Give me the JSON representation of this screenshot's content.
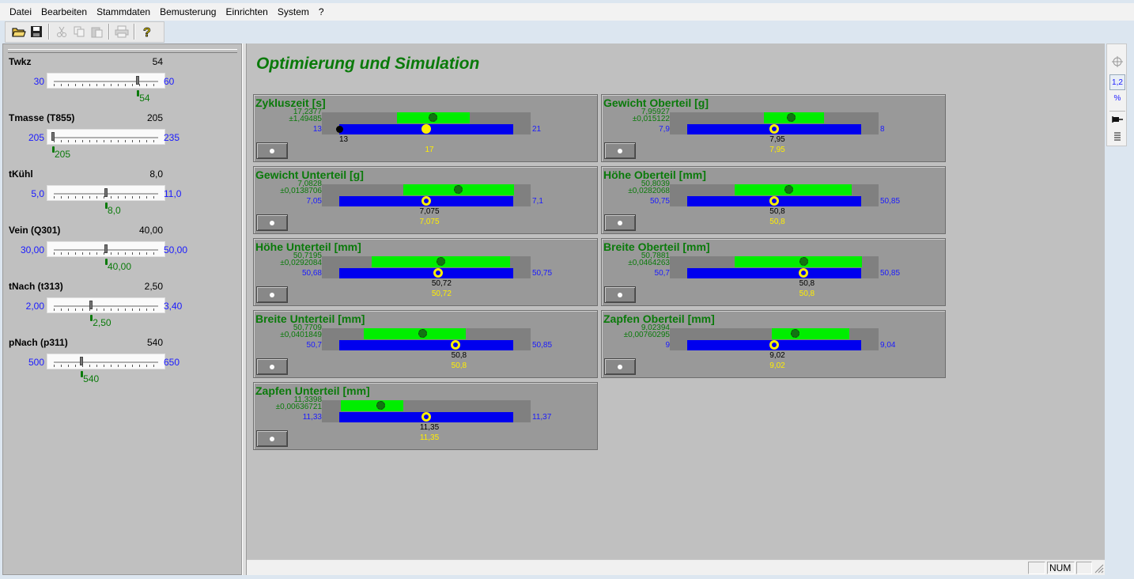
{
  "menu": [
    "Datei",
    "Bearbeiten",
    "Stammdaten",
    "Bemusterung",
    "Einrichten",
    "System",
    "?"
  ],
  "toolbar": {
    "buttons": [
      {
        "icon": "open-folder-icon",
        "enabled": true
      },
      {
        "icon": "save-disk-icon",
        "enabled": true
      },
      {
        "icon": "cut-icon",
        "enabled": false
      },
      {
        "icon": "copy-icon",
        "enabled": false
      },
      {
        "icon": "paste-icon",
        "enabled": false
      },
      {
        "icon": "print-icon",
        "enabled": false
      },
      {
        "icon": "help-icon",
        "enabled": true
      }
    ]
  },
  "params": [
    {
      "name": "Twkz",
      "value": "54",
      "min": "30",
      "max": "60",
      "optimal": "54",
      "fraction": 0.8
    },
    {
      "name": "Tmasse  (T855)",
      "value": "205",
      "min": "205",
      "max": "235",
      "optimal": "205",
      "fraction": 0.0
    },
    {
      "name": "tKühl",
      "value": "8,0",
      "min": "5,0",
      "max": "11,0",
      "optimal": "8,0",
      "fraction": 0.5
    },
    {
      "name": "Vein  (Q301)",
      "value": "40,00",
      "min": "30,00",
      "max": "50,00",
      "optimal": "40,00",
      "fraction": 0.5
    },
    {
      "name": "tNach  (t313)",
      "value": "2,50",
      "min": "2,00",
      "max": "3,40",
      "optimal": "2,50",
      "fraction": 0.36
    },
    {
      "name": "pNach  (p311)",
      "value": "540",
      "min": "500",
      "max": "650",
      "optimal": "540",
      "fraction": 0.27
    }
  ],
  "main": {
    "title": "Optimierung und Simulation"
  },
  "cards": [
    {
      "title": "Zykluszeit [s]",
      "mean": "17,2377",
      "sd": "±1,49485",
      "min": "13",
      "max": "21",
      "current": "",
      "optimum": "17",
      "min_marker": "13",
      "green_from": 0.36,
      "green_to": 0.71,
      "green_dot": 0.53,
      "marker": 0.5,
      "filled": true
    },
    {
      "title": "Gewicht Oberteil [g]",
      "mean": "7,95927",
      "sd": "±0,015122",
      "min": "7,9",
      "max": "8",
      "current": "7,95",
      "optimum": "7,95",
      "min_marker": "",
      "green_from": 0.45,
      "green_to": 0.74,
      "green_dot": 0.58,
      "marker": 0.5,
      "filled": false
    },
    {
      "title": "Gewicht Unterteil [g]",
      "mean": "7,0828",
      "sd": "±0,0138706",
      "min": "7,05",
      "max": "7,1",
      "current": "7,075",
      "optimum": "7,075",
      "min_marker": "",
      "green_from": 0.39,
      "green_to": 0.92,
      "green_dot": 0.65,
      "marker": 0.5,
      "filled": false
    },
    {
      "title": "Höhe Oberteil [mm]",
      "mean": "50,8039",
      "sd": "±0,0282068",
      "min": "50,75",
      "max": "50,85",
      "current": "50,8",
      "optimum": "50,8",
      "min_marker": "",
      "green_from": 0.31,
      "green_to": 0.87,
      "green_dot": 0.57,
      "marker": 0.5,
      "filled": false
    },
    {
      "title": "Höhe Unterteil [mm]",
      "mean": "50,7195",
      "sd": "±0,0292084",
      "min": "50,68",
      "max": "50,75",
      "current": "50,72",
      "optimum": "50,72",
      "min_marker": "",
      "green_from": 0.24,
      "green_to": 0.9,
      "green_dot": 0.57,
      "marker": 0.57,
      "filled": false
    },
    {
      "title": "Breite Oberteil [mm]",
      "mean": "50,7881",
      "sd": "±0,0464263",
      "min": "50,7",
      "max": "50,85",
      "current": "50,8",
      "optimum": "50,8",
      "min_marker": "",
      "green_from": 0.31,
      "green_to": 0.92,
      "green_dot": 0.64,
      "marker": 0.67,
      "filled": false
    },
    {
      "title": "Breite Unterteil [mm]",
      "mean": "50,7709",
      "sd": "±0,0401849",
      "min": "50,7",
      "max": "50,85",
      "current": "50,8",
      "optimum": "50,8",
      "min_marker": "",
      "green_from": 0.2,
      "green_to": 0.69,
      "green_dot": 0.48,
      "marker": 0.67,
      "filled": false
    },
    {
      "title": "Zapfen Oberteil [mm]",
      "mean": "9,02394",
      "sd": "±0,00760295",
      "min": "9",
      "max": "9,04",
      "current": "9,02",
      "optimum": "9,02",
      "min_marker": "",
      "green_from": 0.49,
      "green_to": 0.86,
      "green_dot": 0.6,
      "marker": 0.5,
      "filled": false
    },
    {
      "title": "Zapfen Unterteil [mm]",
      "mean": "11,3398",
      "sd": "±0,00636721",
      "min": "11,33",
      "max": "11,37",
      "current": "11,35",
      "optimum": "11,35",
      "min_marker": "",
      "green_from": 0.09,
      "green_to": 0.39,
      "green_dot": 0.28,
      "marker": 0.5,
      "filled": false
    }
  ],
  "right_toolbar": [
    "crosshair-icon",
    "1,2",
    "%",
    "pin-icon",
    "list-icon"
  ],
  "statusbar": {
    "num": "NUM"
  },
  "colors": {
    "accent_green": "#0a7a0a",
    "value_blue": "#1a1aff",
    "optimum_yellow": "#ffee00",
    "bar_blue": "#0000ee",
    "bar_green": "#00ee00"
  }
}
